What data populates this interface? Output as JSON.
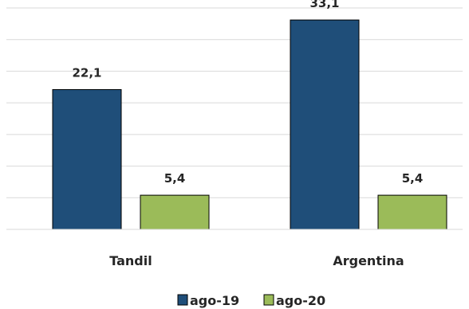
{
  "chart_data": {
    "type": "bar",
    "categories": [
      "Tandil",
      "Argentina"
    ],
    "series": [
      {
        "name": "ago-19",
        "values": [
          22.1,
          33.1
        ],
        "labels": [
          "22,1",
          "33,1"
        ],
        "color": "#1f4e79"
      },
      {
        "name": "ago-20",
        "values": [
          5.4,
          5.4
        ],
        "labels": [
          "5,4",
          "5,4"
        ],
        "color": "#9bbb59"
      }
    ],
    "ylim": [
      0,
      35
    ],
    "grid": true,
    "legend_position": "bottom",
    "title": "",
    "xlabel": "",
    "ylabel": ""
  }
}
